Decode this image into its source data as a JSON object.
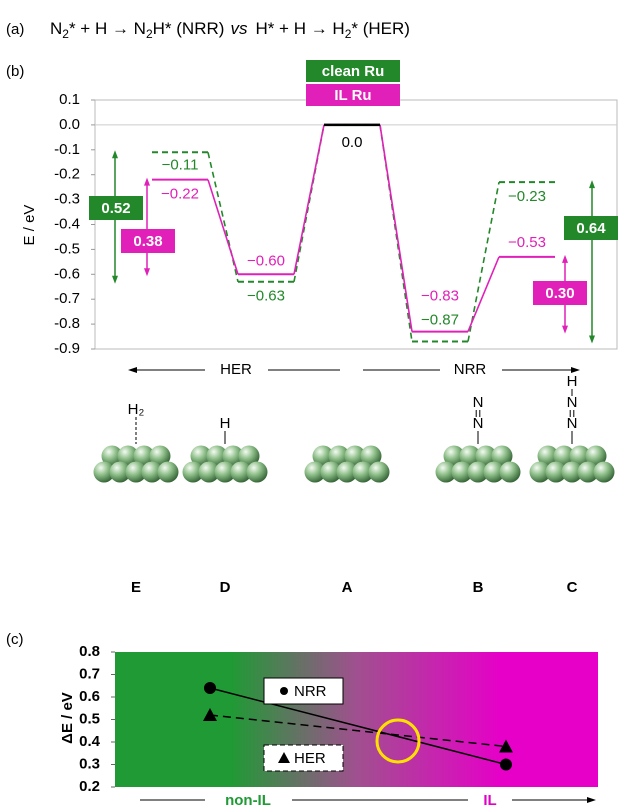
{
  "panel_labels": [
    "(a)",
    "(b)",
    "(c)"
  ],
  "equation": [
    "N",
    "2",
    "* + H → N",
    "2",
    "H* (NRR)",
    "vs",
    "H* + H → H",
    "2",
    "* (HER)"
  ],
  "structures": {
    "adsorbates": [
      [
        "H₂"
      ],
      [
        "H"
      ],
      [],
      [
        "N",
        "N"
      ],
      [
        "H",
        "N",
        "N"
      ]
    ]
  },
  "chart_data": [
    {
      "type": "step",
      "ylabel": "E / eV",
      "categories": [
        "E",
        "D",
        "A",
        "B",
        "C"
      ],
      "series": [
        {
          "name": "clean Ru",
          "color": "#23882a",
          "dash": true,
          "values": [
            -0.11,
            -0.63,
            0,
            -0.87,
            -0.23
          ],
          "value_labels": [
            "−0.11",
            "−0.63",
            null,
            "−0.87",
            "−0.23"
          ],
          "gaps": [
            {
              "value": 0.52,
              "label": "0.52"
            },
            {
              "value": 0.64,
              "label": "0.64"
            }
          ]
        },
        {
          "name": "IL Ru",
          "color": "#e020b8",
          "dash": false,
          "values": [
            -0.22,
            -0.6,
            0,
            -0.83,
            -0.53
          ],
          "value_labels": [
            "−0.22",
            "−0.60",
            null,
            "−0.83",
            "−0.53"
          ],
          "gaps": [
            {
              "value": 0.38,
              "label": "0.38"
            },
            {
              "value": 0.3,
              "label": "0.30"
            }
          ]
        }
      ],
      "shared_level": {
        "value": 0,
        "label": "0.0"
      },
      "ylim": [
        -0.9,
        0.1
      ],
      "yticks": [
        -0.9,
        -0.8,
        -0.7,
        -0.6,
        -0.5,
        -0.4,
        -0.3,
        -0.2,
        -0.1,
        {
          "value": 0,
          "label": "0.0"
        },
        0.1
      ],
      "process_labels": [
        "HER",
        "NRR"
      ]
    },
    {
      "type": "line",
      "ylabel": "ΔE / eV",
      "categories": [
        "non-IL",
        "IL"
      ],
      "category_colors": [
        "#1f9a34",
        "#e000c8"
      ],
      "series": [
        {
          "name": "NRR",
          "color": "#000000",
          "marker": "circle",
          "dash": false,
          "values": [
            0.64,
            0.3
          ]
        },
        {
          "name": "HER",
          "color": "#000000",
          "marker": "triangle",
          "dash": true,
          "values": [
            0.52,
            0.38
          ]
        }
      ],
      "ylim": [
        0.2,
        0.8
      ],
      "yticks": [
        0.2,
        0.3,
        0.4,
        0.5,
        0.6,
        0.7,
        0.8
      ]
    }
  ]
}
